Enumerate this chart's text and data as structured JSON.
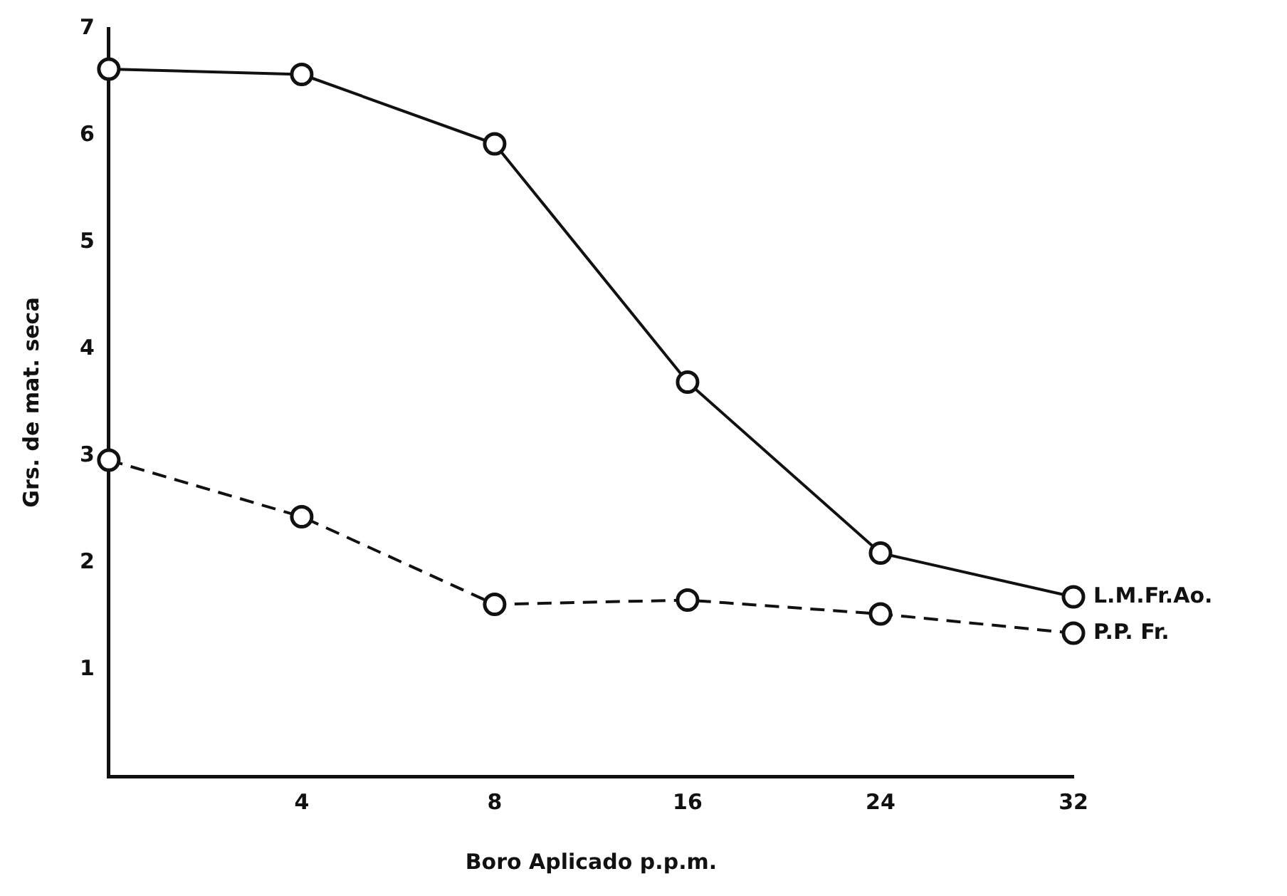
{
  "chart_data": {
    "type": "line",
    "xlabel": "Boro Aplicado p.p.m.",
    "ylabel": "Grs. de mat. seca",
    "categories": [
      null,
      "4",
      "8",
      "16",
      "24",
      "32"
    ],
    "ylim": [
      0,
      7
    ],
    "yticks": [
      1,
      2,
      3,
      4,
      5,
      6,
      7
    ],
    "grid": false,
    "marker": "circle",
    "series": [
      {
        "name": "L.M.Fr.Ao.",
        "color": "#111111",
        "line_style": "solid",
        "values": [
          6.62,
          6.57,
          5.92,
          3.69,
          2.09,
          1.68
        ]
      },
      {
        "name": "P.P. Fr.",
        "color": "#111111",
        "line_style": "dashed",
        "values": [
          2.96,
          2.43,
          1.61,
          1.65,
          1.52,
          1.34
        ]
      }
    ]
  }
}
